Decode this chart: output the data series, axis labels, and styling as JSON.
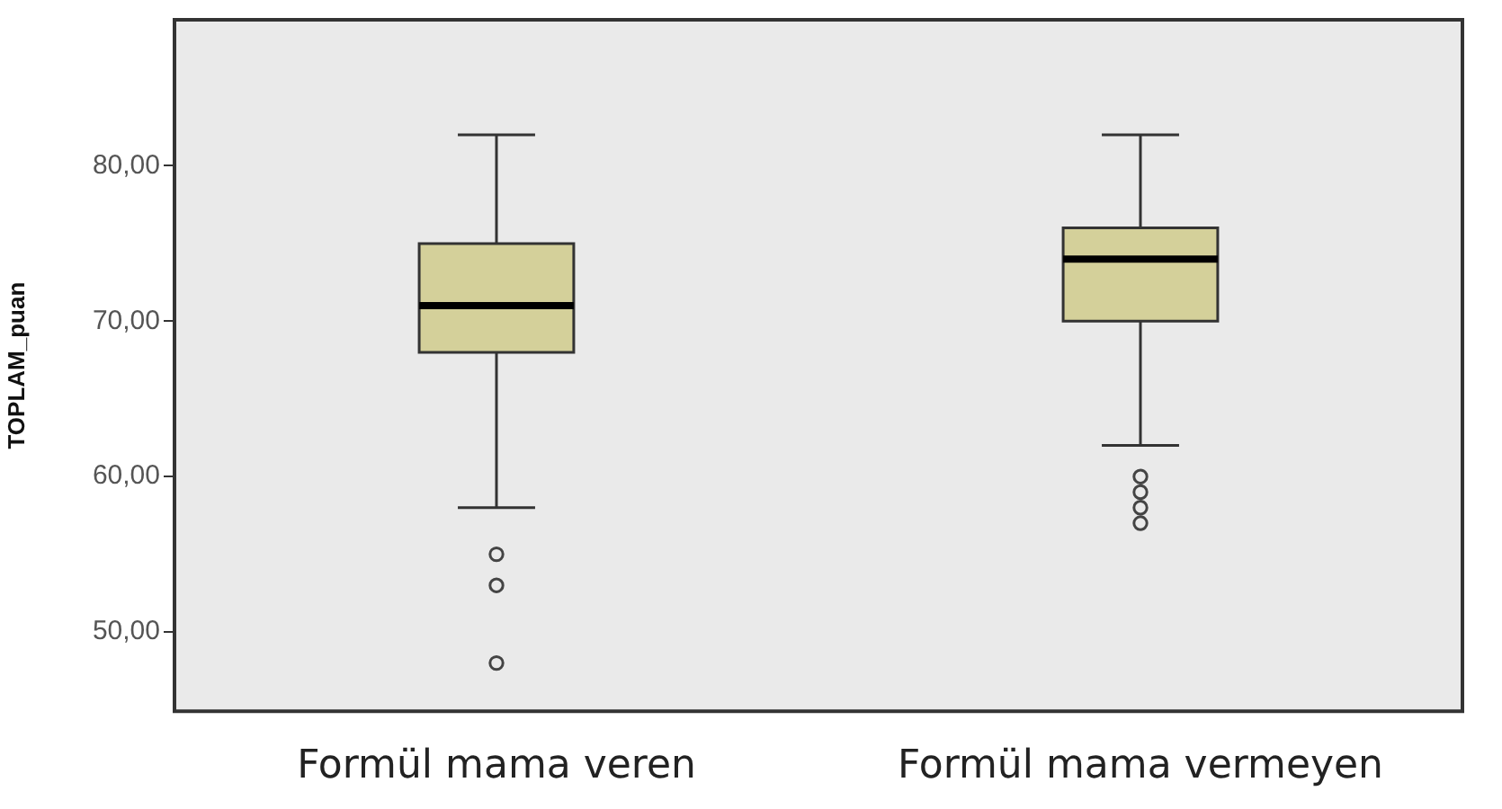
{
  "chart_data": {
    "type": "box",
    "ylabel": "TOPLAM_puan",
    "categories": [
      "Formül mama veren",
      "Formül mama vermeyen"
    ],
    "series": [
      {
        "color": "#d4d09a",
        "boxes": [
          {
            "low": 58,
            "q1": 68,
            "median": 71,
            "q3": 75,
            "high": 82,
            "outliers": [
              55,
              53,
              48
            ]
          },
          {
            "low": 62,
            "q1": 70,
            "median": 74,
            "q3": 76,
            "high": 82,
            "outliers": [
              60,
              59,
              58,
              57
            ]
          }
        ]
      }
    ],
    "ylim": [
      44.9,
      89.4
    ],
    "yticks": [
      {
        "value": 50,
        "label": "50,00"
      },
      {
        "value": 60,
        "label": "60,00"
      },
      {
        "value": 70,
        "label": "70,00"
      },
      {
        "value": 80,
        "label": "80,00"
      }
    ],
    "grid": false
  }
}
